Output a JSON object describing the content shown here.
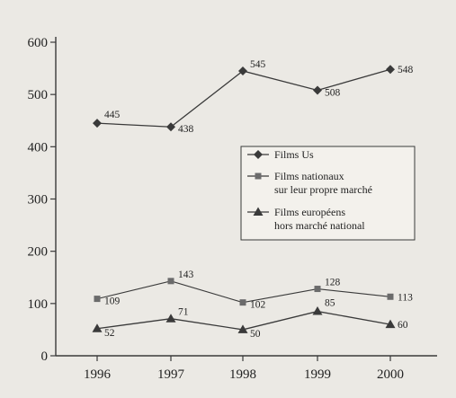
{
  "chart_data": {
    "type": "line",
    "categories": [
      "1996",
      "1997",
      "1998",
      "1999",
      "2000"
    ],
    "ylim": [
      0,
      600
    ],
    "yticks": [
      0,
      100,
      200,
      300,
      400,
      500,
      600
    ],
    "grid": false,
    "legend_position": "right",
    "series": [
      {
        "name": "Films Us",
        "marker": "diamond",
        "values": [
          445,
          438,
          545,
          508,
          548
        ],
        "labels": [
          "445",
          "438",
          "545",
          "508",
          "548"
        ]
      },
      {
        "name": "Films nationaux sur leur propre marché",
        "legend_lines": [
          "Films nationaux",
          "sur leur propre marché"
        ],
        "marker": "square",
        "values": [
          109,
          143,
          102,
          128,
          113
        ],
        "labels": [
          "109",
          "143",
          "102",
          "128",
          "113"
        ]
      },
      {
        "name": "Films européens hors marché national",
        "legend_lines": [
          "Films européens",
          "hors marché national"
        ],
        "marker": "triangle",
        "values": [
          52,
          71,
          50,
          85,
          60
        ],
        "labels": [
          "52",
          "71",
          "50",
          "85",
          "60"
        ]
      }
    ],
    "colors": {
      "line": "#3a3a3a",
      "background": "#ebe9e4"
    }
  }
}
